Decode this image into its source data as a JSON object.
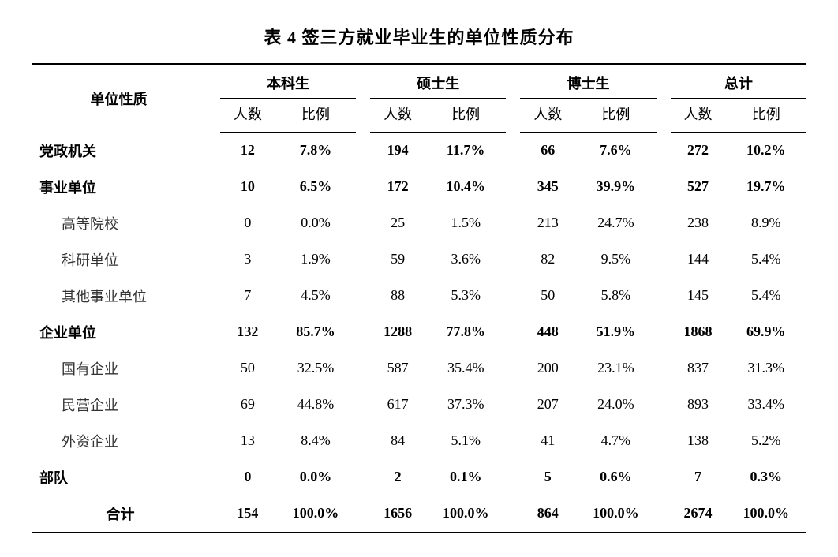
{
  "title": "表 4 签三方就业毕业生的单位性质分布",
  "header": {
    "rowLabel": "单位性质",
    "groups": [
      "本科生",
      "硕士生",
      "博士生",
      "总计"
    ],
    "subs": [
      "人数",
      "比例"
    ]
  },
  "rows": [
    {
      "label": "党政机关",
      "bold": true,
      "indent": false,
      "cells": [
        "12",
        "7.8%",
        "194",
        "11.7%",
        "66",
        "7.6%",
        "272",
        "10.2%"
      ]
    },
    {
      "label": "事业单位",
      "bold": true,
      "indent": false,
      "cells": [
        "10",
        "6.5%",
        "172",
        "10.4%",
        "345",
        "39.9%",
        "527",
        "19.7%"
      ]
    },
    {
      "label": "高等院校",
      "bold": false,
      "indent": true,
      "cells": [
        "0",
        "0.0%",
        "25",
        "1.5%",
        "213",
        "24.7%",
        "238",
        "8.9%"
      ]
    },
    {
      "label": "科研单位",
      "bold": false,
      "indent": true,
      "cells": [
        "3",
        "1.9%",
        "59",
        "3.6%",
        "82",
        "9.5%",
        "144",
        "5.4%"
      ]
    },
    {
      "label": "其他事业单位",
      "bold": false,
      "indent": true,
      "cells": [
        "7",
        "4.5%",
        "88",
        "5.3%",
        "50",
        "5.8%",
        "145",
        "5.4%"
      ]
    },
    {
      "label": "企业单位",
      "bold": true,
      "indent": false,
      "cells": [
        "132",
        "85.7%",
        "1288",
        "77.8%",
        "448",
        "51.9%",
        "1868",
        "69.9%"
      ]
    },
    {
      "label": "国有企业",
      "bold": false,
      "indent": true,
      "cells": [
        "50",
        "32.5%",
        "587",
        "35.4%",
        "200",
        "23.1%",
        "837",
        "31.3%"
      ]
    },
    {
      "label": "民营企业",
      "bold": false,
      "indent": true,
      "cells": [
        "69",
        "44.8%",
        "617",
        "37.3%",
        "207",
        "24.0%",
        "893",
        "33.4%"
      ]
    },
    {
      "label": "外资企业",
      "bold": false,
      "indent": true,
      "cells": [
        "13",
        "8.4%",
        "84",
        "5.1%",
        "41",
        "4.7%",
        "138",
        "5.2%"
      ]
    },
    {
      "label": "部队",
      "bold": true,
      "indent": false,
      "cells": [
        "0",
        "0.0%",
        "2",
        "0.1%",
        "5",
        "0.6%",
        "7",
        "0.3%"
      ]
    }
  ],
  "total": {
    "label": "合计",
    "cells": [
      "154",
      "100.0%",
      "1656",
      "100.0%",
      "864",
      "100.0%",
      "2674",
      "100.0%"
    ]
  }
}
